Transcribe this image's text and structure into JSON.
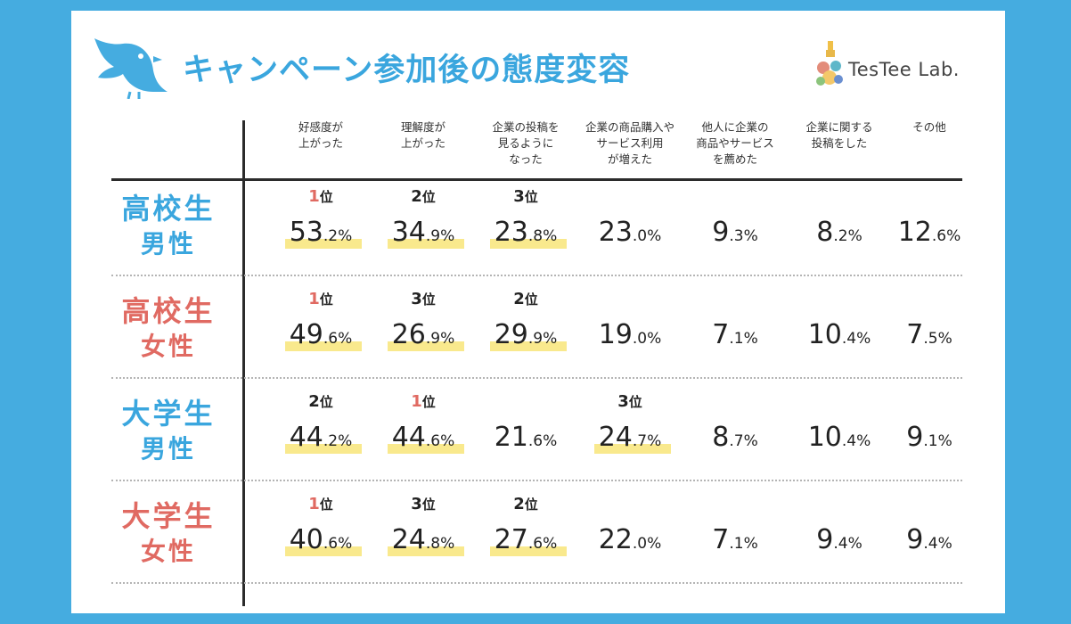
{
  "title": "キャンペーン参加後の態度変容",
  "brand": "TesTee Lab.",
  "colors": {
    "frame": "#45ace0",
    "title": "#3aa6de",
    "male": "#3aa6de",
    "female": "#e06a62",
    "highlight": "#f9e98d",
    "rank_first": "#e06a62"
  },
  "chart_data": {
    "type": "table",
    "title": "キャンペーン参加後の態度変容",
    "unit": "%",
    "rank_suffix": "位",
    "columns": [
      [
        "好感度が",
        "上がった"
      ],
      [
        "理解度が",
        "上がった"
      ],
      [
        "企業の投稿を",
        "見るように",
        "なった"
      ],
      [
        "企業の商品購入や",
        "サービス利用",
        "が増えた"
      ],
      [
        "他人に企業の",
        "商品やサービス",
        "を薦めた"
      ],
      [
        "企業に関する",
        "投稿をした"
      ],
      [
        "その他"
      ]
    ],
    "rows": [
      {
        "label_line1": "高校生",
        "label_line2": "男性",
        "gender": "male",
        "values": [
          {
            "int": "53",
            "dec": ".2%",
            "rank": 1
          },
          {
            "int": "34",
            "dec": ".9%",
            "rank": 2
          },
          {
            "int": "23",
            "dec": ".8%",
            "rank": 3
          },
          {
            "int": "23",
            "dec": ".0%",
            "rank": null
          },
          {
            "int": "9",
            "dec": ".3%",
            "rank": null
          },
          {
            "int": "8",
            "dec": ".2%",
            "rank": null
          },
          {
            "int": "12",
            "dec": ".6%",
            "rank": null
          }
        ]
      },
      {
        "label_line1": "高校生",
        "label_line2": "女性",
        "gender": "female",
        "values": [
          {
            "int": "49",
            "dec": ".6%",
            "rank": 1
          },
          {
            "int": "26",
            "dec": ".9%",
            "rank": 3
          },
          {
            "int": "29",
            "dec": ".9%",
            "rank": 2
          },
          {
            "int": "19",
            "dec": ".0%",
            "rank": null
          },
          {
            "int": "7",
            "dec": ".1%",
            "rank": null
          },
          {
            "int": "10",
            "dec": ".4%",
            "rank": null
          },
          {
            "int": "7",
            "dec": ".5%",
            "rank": null
          }
        ]
      },
      {
        "label_line1": "大学生",
        "label_line2": "男性",
        "gender": "male",
        "values": [
          {
            "int": "44",
            "dec": ".2%",
            "rank": 2
          },
          {
            "int": "44",
            "dec": ".6%",
            "rank": 1
          },
          {
            "int": "21",
            "dec": ".6%",
            "rank": null
          },
          {
            "int": "24",
            "dec": ".7%",
            "rank": 3
          },
          {
            "int": "8",
            "dec": ".7%",
            "rank": null
          },
          {
            "int": "10",
            "dec": ".4%",
            "rank": null
          },
          {
            "int": "9",
            "dec": ".1%",
            "rank": null
          }
        ]
      },
      {
        "label_line1": "大学生",
        "label_line2": "女性",
        "gender": "female",
        "values": [
          {
            "int": "40",
            "dec": ".6%",
            "rank": 1
          },
          {
            "int": "24",
            "dec": ".8%",
            "rank": 3
          },
          {
            "int": "27",
            "dec": ".6%",
            "rank": 2
          },
          {
            "int": "22",
            "dec": ".0%",
            "rank": null
          },
          {
            "int": "7",
            "dec": ".1%",
            "rank": null
          },
          {
            "int": "9",
            "dec": ".4%",
            "rank": null
          },
          {
            "int": "9",
            "dec": ".4%",
            "rank": null
          }
        ]
      }
    ]
  }
}
